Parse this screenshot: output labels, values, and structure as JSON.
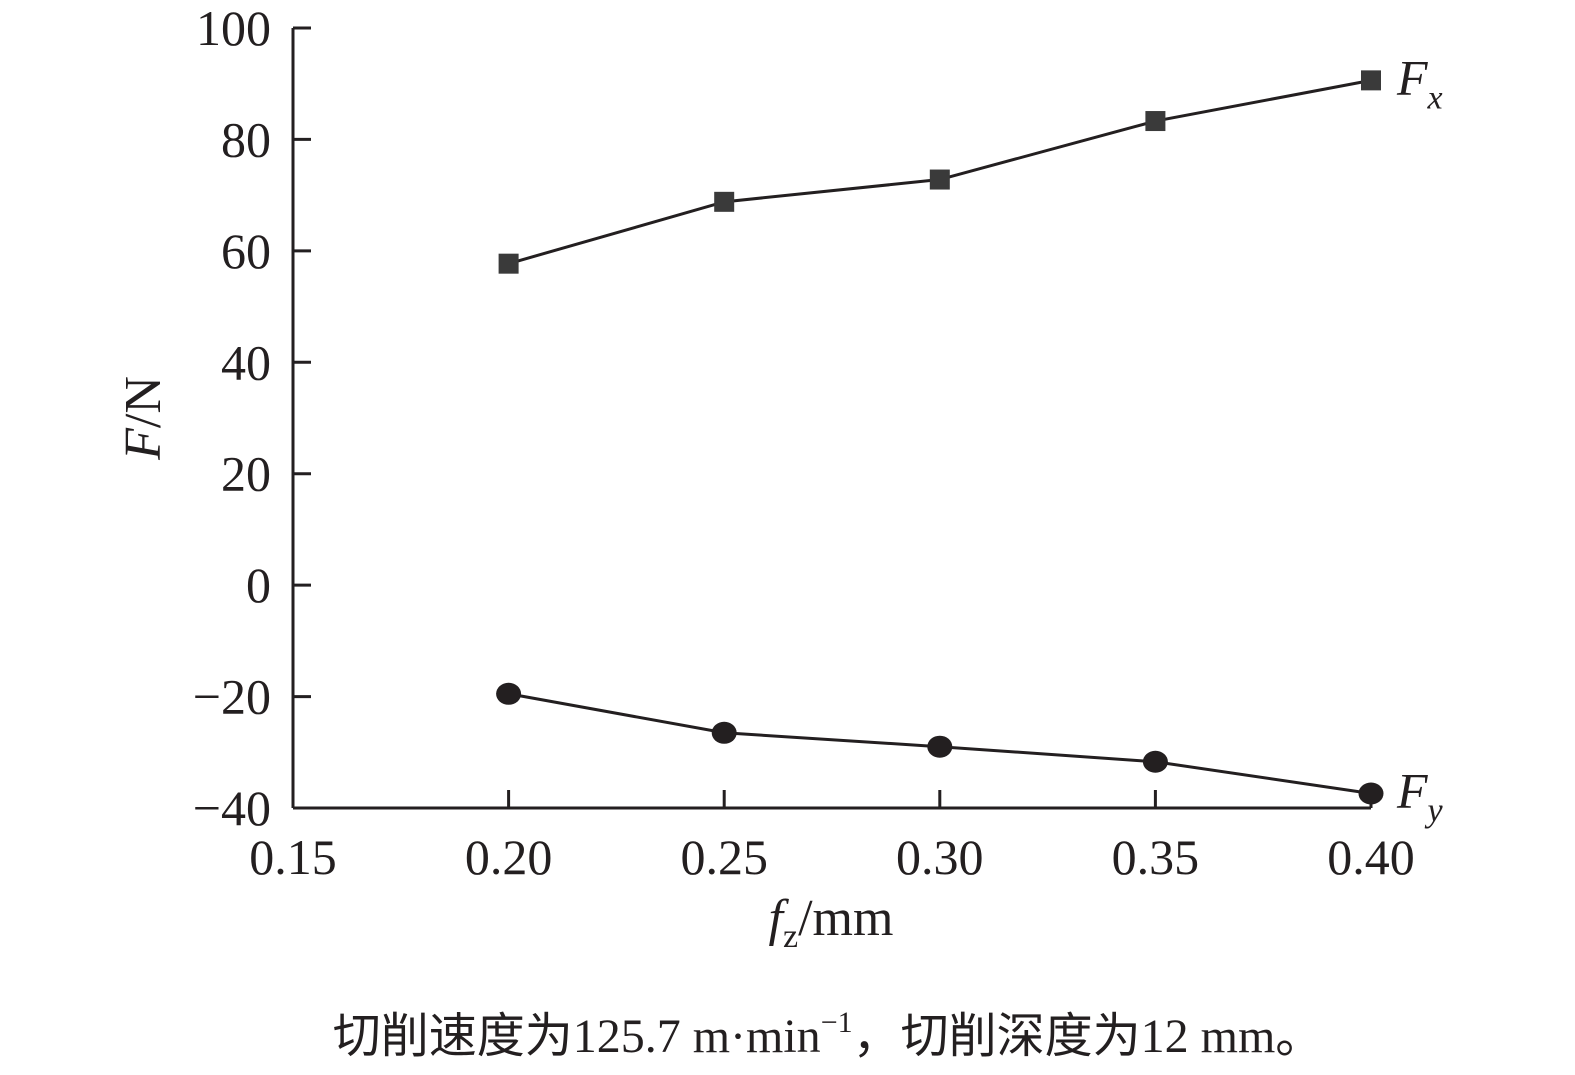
{
  "chart_data": {
    "type": "line",
    "x": [
      0.2,
      0.25,
      0.3,
      0.35,
      0.4
    ],
    "series": [
      {
        "name": "F_x",
        "name_main": "F",
        "name_sub": "x",
        "marker": "square",
        "color": "#3a3a3a",
        "values": [
          57.7,
          68.8,
          72.8,
          83.3,
          90.6
        ]
      },
      {
        "name": "F_y",
        "name_main": "F",
        "name_sub": "y",
        "marker": "circle",
        "color": "#231f20",
        "values": [
          -19.5,
          -26.5,
          -29.0,
          -31.7,
          -37.4
        ]
      }
    ],
    "xlim": [
      0.15,
      0.4
    ],
    "ylim": [
      -40,
      100
    ],
    "xticks": [
      "0.15",
      "0.20",
      "0.25",
      "0.30",
      "0.35",
      "0.40"
    ],
    "yticks": [
      "100",
      "80",
      "60",
      "40",
      "20",
      "0",
      "−20",
      "−40"
    ],
    "xlabel": {
      "main": "f",
      "sub": "z",
      "unit": "/mm"
    },
    "ylabel": {
      "main": "F",
      "unit": "/N"
    },
    "grid": false,
    "legend": "inline at line ends"
  },
  "caption": {
    "before": "切削速度为125.7 m·min",
    "sup": "−1",
    "after": "，切削深度为12 mm。"
  }
}
